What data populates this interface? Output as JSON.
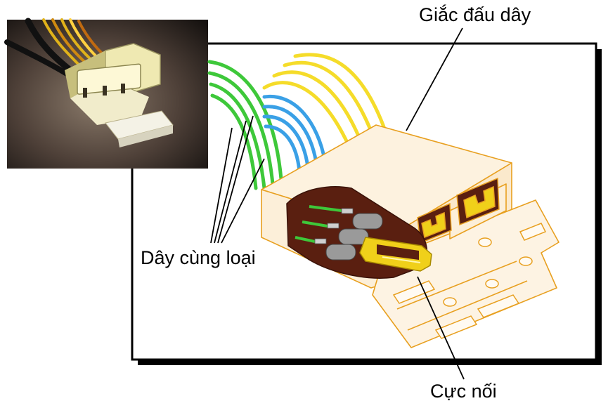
{
  "labels": {
    "connector": "Giắc đấu dây",
    "same_type_wires": "Dây cùng loại",
    "terminal": "Cực nối"
  },
  "colors": {
    "outline": "#e8a020",
    "body": "#fdf2df",
    "green_wire": "#3ec83a",
    "blue_wire": "#3aa0e6",
    "yellow_wire": "#f5dc2a",
    "terminal_yellow": "#f0d01a",
    "cutaway": "#5a1f10",
    "pin_grey": "#9a9a9a",
    "frame": "#000000"
  }
}
